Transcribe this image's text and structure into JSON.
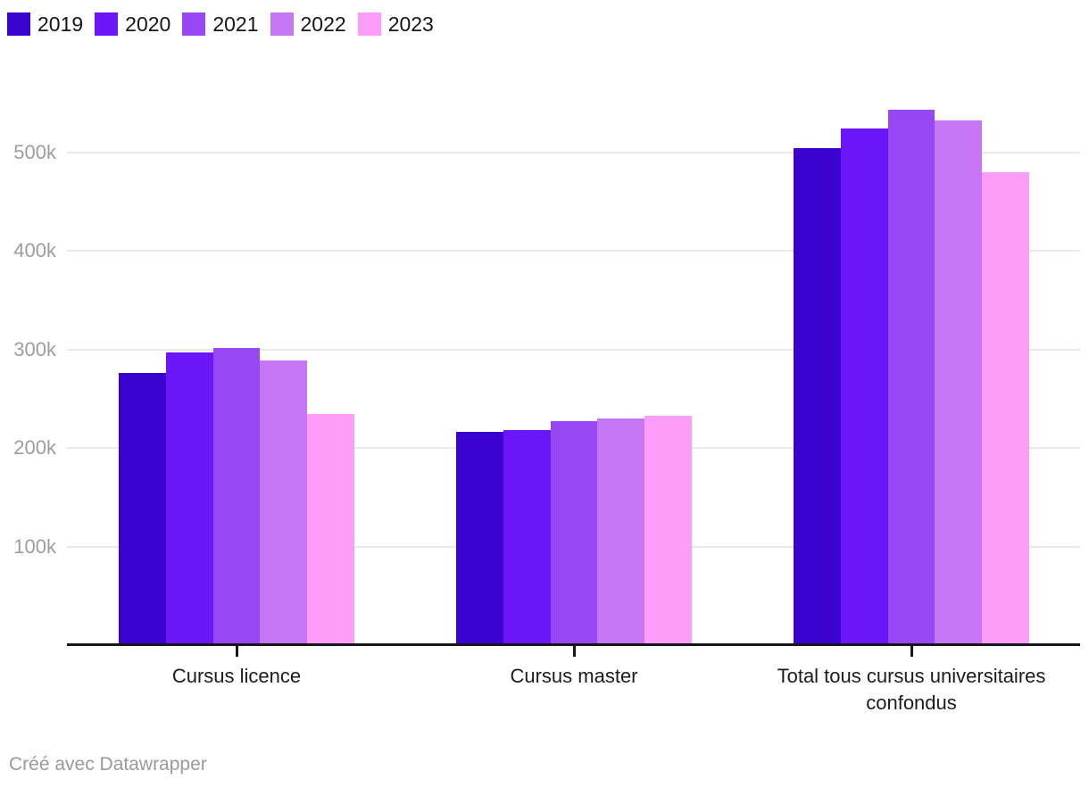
{
  "legend": {
    "items": [
      {
        "label": "2019",
        "color": "#3902ce"
      },
      {
        "label": "2020",
        "color": "#6b16f8"
      },
      {
        "label": "2021",
        "color": "#9747f3"
      },
      {
        "label": "2022",
        "color": "#c676f4"
      },
      {
        "label": "2023",
        "color": "#fb9df9"
      }
    ]
  },
  "chart_data": {
    "type": "bar",
    "title": "",
    "categories": [
      "Cursus licence",
      "Cursus master",
      "Total tous cursus universitaires confondus"
    ],
    "series": [
      {
        "name": "2019",
        "color": "#3902ce",
        "values": [
          276000,
          216000,
          504000
        ]
      },
      {
        "name": "2020",
        "color": "#6b16f8",
        "values": [
          297000,
          218000,
          524000
        ]
      },
      {
        "name": "2021",
        "color": "#9747f3",
        "values": [
          301000,
          227000,
          543000
        ]
      },
      {
        "name": "2022",
        "color": "#c676f4",
        "values": [
          289000,
          230000,
          532000
        ]
      },
      {
        "name": "2023",
        "color": "#fb9df9",
        "values": [
          234000,
          233000,
          480000
        ]
      }
    ],
    "xlabel": "",
    "ylabel": "",
    "y_ticks": [
      "100k",
      "200k",
      "300k",
      "400k",
      "500k"
    ],
    "ylim": [
      0,
      560000
    ],
    "grid": true,
    "legend_position": "top-left",
    "colors": {
      "gridline": "#e9e9e9",
      "axis": "#17171b",
      "tick_label": "#9d9d9d",
      "category_label": "#1c1c1c"
    }
  },
  "footer": {
    "credit": "Créé avec Datawrapper"
  }
}
